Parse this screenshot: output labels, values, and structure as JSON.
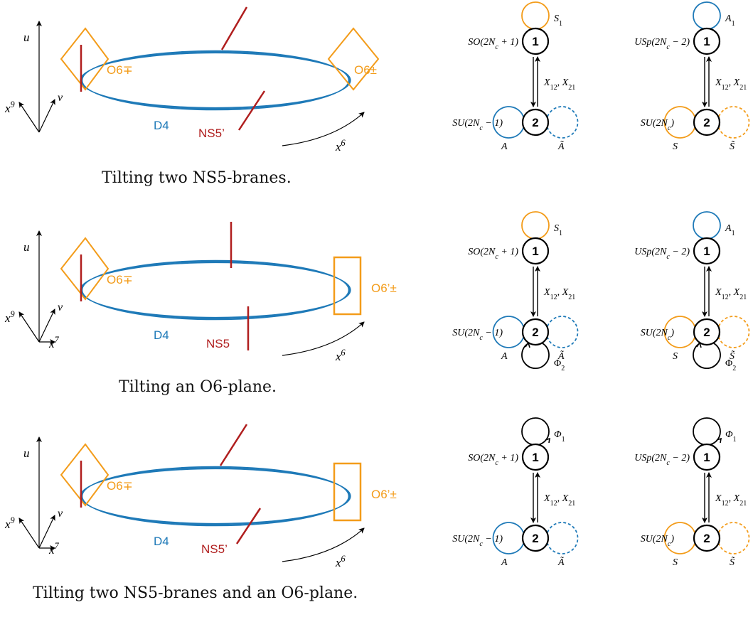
{
  "colors": {
    "d4": "#1f7ab8",
    "ns5": "#b01e1e",
    "orientifold": "#f39c1a",
    "axes": "#000000",
    "node_edge": "#000000"
  },
  "panels": [
    {
      "id": "row1",
      "caption": "Tilting two NS5-branes.",
      "axes": {
        "up": "u",
        "left": "x",
        "left_sup": "9",
        "diag": "v",
        "right": "",
        "right_sup": ""
      },
      "left_plane_label": "O6∓",
      "right_plane_label": "O6±",
      "d4_label": "D4",
      "ns5_label": "NS5’",
      "x6_label": "x",
      "x6_sup": "6",
      "quiver_a": {
        "node1": "1",
        "node2": "2",
        "group1": "SO(2N",
        "group1_sub": "c",
        "group1_tail": " + 1)",
        "group2": "SU(2N",
        "group2_sub": "c",
        "group2_tail": " − 1)",
        "loop1": "S",
        "loop1_sub": "1",
        "loop2_left": "A",
        "loop2_right": "Ã",
        "bifund": "X",
        "bifund_sub1": "12",
        "bifund_mid": ", X",
        "bifund_sub2": "21",
        "adj2": ""
      },
      "quiver_b": {
        "node1": "1",
        "node2": "2",
        "group1": "USp(2N",
        "group1_sub": "c",
        "group1_tail": " − 2)",
        "group2": "SU(2N",
        "group2_sub": "c",
        "group2_tail": ")",
        "loop1": "A",
        "loop1_sub": "1",
        "loop2_left": "S",
        "loop2_right": "S̃",
        "bifund": "X",
        "bifund_sub1": "12",
        "bifund_mid": ", X",
        "bifund_sub2": "21",
        "adj2": ""
      }
    },
    {
      "id": "row2",
      "caption": "Tilting an O6-plane.",
      "axes": {
        "up": "u",
        "left": "x",
        "left_sup": "9",
        "diag": "v",
        "right": "x",
        "right_sup": "7"
      },
      "left_plane_label": "O6∓",
      "right_plane_label": "O6’±",
      "d4_label": "D4",
      "ns5_label": "NS5",
      "x6_label": "x",
      "x6_sup": "6",
      "quiver_a": {
        "node1": "1",
        "node2": "2",
        "group1": "SO(2N",
        "group1_sub": "c",
        "group1_tail": " + 1)",
        "group2": "SU(2N",
        "group2_sub": "c",
        "group2_tail": " − 1)",
        "loop1": "S",
        "loop1_sub": "1",
        "loop2_left": "A",
        "loop2_right": "Ã",
        "bifund": "X",
        "bifund_sub1": "12",
        "bifund_mid": ", X",
        "bifund_sub2": "21",
        "adj2": "Φ",
        "adj2_sub": "2"
      },
      "quiver_b": {
        "node1": "1",
        "node2": "2",
        "group1": "USp(2N",
        "group1_sub": "c",
        "group1_tail": " − 2)",
        "group2": "SU(2N",
        "group2_sub": "c",
        "group2_tail": ")",
        "loop1": "A",
        "loop1_sub": "1",
        "loop2_left": "S",
        "loop2_right": "S̃",
        "bifund": "X",
        "bifund_sub1": "12",
        "bifund_mid": ", X",
        "bifund_sub2": "21",
        "adj2": "Φ",
        "adj2_sub": "2"
      }
    },
    {
      "id": "row3",
      "caption": "Tilting two NS5-branes and an O6-plane.",
      "axes": {
        "up": "u",
        "left": "x",
        "left_sup": "9",
        "diag": "v",
        "right": "x",
        "right_sup": "7"
      },
      "left_plane_label": "O6∓",
      "right_plane_label": "O6’±",
      "d4_label": "D4",
      "ns5_label": "NS5’",
      "x6_label": "x",
      "x6_sup": "6",
      "quiver_a": {
        "node1": "1",
        "node2": "2",
        "group1": "SO(2N",
        "group1_sub": "c",
        "group1_tail": " + 1)",
        "group2": "SU(2N",
        "group2_sub": "c",
        "group2_tail": " − 1)",
        "loop1": "Φ",
        "loop1_sub": "1",
        "loop2_left": "A",
        "loop2_right": "Ã",
        "bifund": "X",
        "bifund_sub1": "12",
        "bifund_mid": ", X",
        "bifund_sub2": "21",
        "adj2": ""
      },
      "quiver_b": {
        "node1": "1",
        "node2": "2",
        "group1": "USp(2N",
        "group1_sub": "c",
        "group1_tail": " − 2)",
        "group2": "SU(2N",
        "group2_sub": "c",
        "group2_tail": ")",
        "loop1": "Φ",
        "loop1_sub": "1",
        "loop2_left": "S",
        "loop2_right": "S̃",
        "bifund": "X",
        "bifund_sub1": "12",
        "bifund_mid": ", X",
        "bifund_sub2": "21",
        "adj2": ""
      }
    }
  ]
}
